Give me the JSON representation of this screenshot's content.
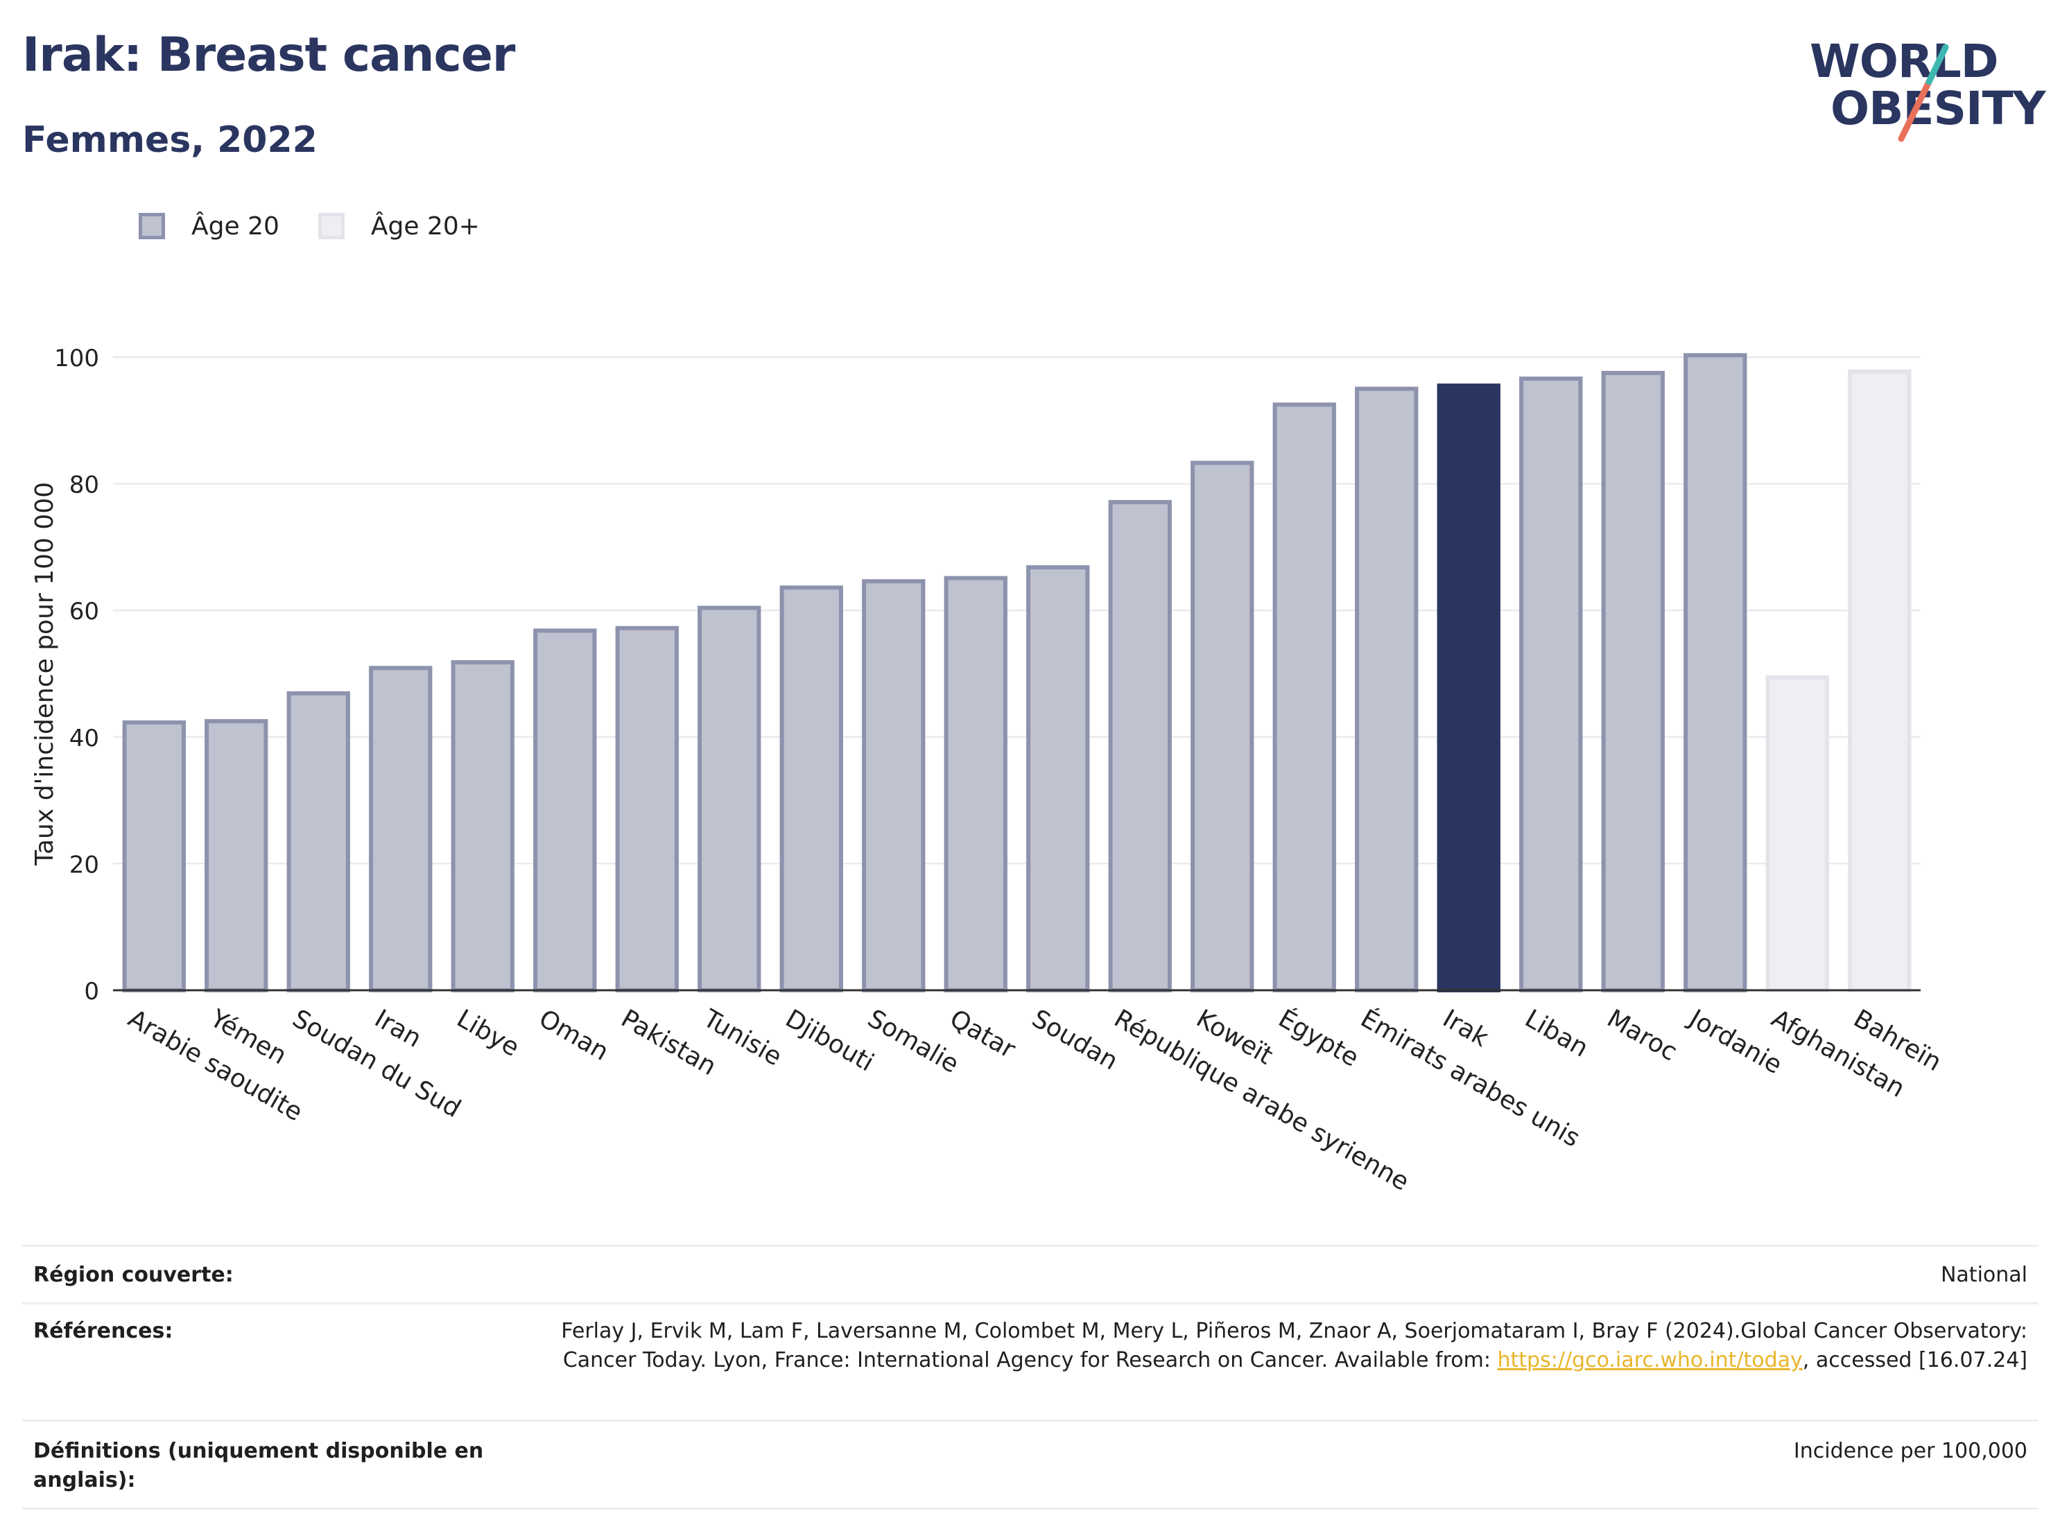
{
  "header": {
    "title": "Irak: Breast cancer",
    "subtitle": "Femmes, 2022"
  },
  "logo": {
    "line1": "WORLD",
    "line2": "OBESITY"
  },
  "legend": [
    {
      "label": "Âge 20",
      "fill": "#bfc2cf",
      "stroke": "#8d93ad"
    },
    {
      "label": "Âge 20+",
      "fill": "#eeeff3",
      "stroke": "#e3e4ea"
    }
  ],
  "colors": {
    "highlight": "#2a3560",
    "bar_fill": "#bfc2cf",
    "bar_stroke": "#8d93ad",
    "bar_light_fill": "#eeeff3",
    "bar_light_stroke": "#e3e4ea",
    "grid": "#e6e6ea",
    "link": "#e8b52a"
  },
  "chart_data": {
    "type": "bar",
    "title": "",
    "xlabel": "",
    "ylabel": "Taux d'incidence pour 100 000",
    "ylim": [
      0,
      100
    ],
    "yticks": [
      0,
      20,
      40,
      60,
      80,
      100
    ],
    "grid": true,
    "legend_position": "top-left",
    "categories": [
      "Arabie saoudite",
      "Yémen",
      "Soudan du Sud",
      "Iran",
      "Libye",
      "Oman",
      "Pakistan",
      "Tunisie",
      "Djibouti",
      "Somalie",
      "Qatar",
      "Soudan",
      "République arabe syrienne",
      "Koweït",
      "Égypte",
      "Émirats arabes unis",
      "Irak",
      "Liban",
      "Maroc",
      "Jordanie",
      "Afghanistan",
      "Bahreïn"
    ],
    "values": [
      42.3,
      42.5,
      46.9,
      50.9,
      51.8,
      56.8,
      57.2,
      60.4,
      63.6,
      64.6,
      65.1,
      66.8,
      77.1,
      83.3,
      92.5,
      95.0,
      95.5,
      96.6,
      97.5,
      100.3,
      49.4,
      97.7
    ],
    "series_by_bar": [
      "Âge 20",
      "Âge 20",
      "Âge 20",
      "Âge 20",
      "Âge 20",
      "Âge 20",
      "Âge 20",
      "Âge 20",
      "Âge 20",
      "Âge 20",
      "Âge 20",
      "Âge 20",
      "Âge 20",
      "Âge 20",
      "Âge 20",
      "Âge 20",
      "Âge 20",
      "Âge 20",
      "Âge 20",
      "Âge 20",
      "Âge 20+",
      "Âge 20+"
    ],
    "highlighted": "Irak"
  },
  "info_table": [
    {
      "label": "Région couverte:",
      "value": "National"
    },
    {
      "label": "Références:",
      "value_before": "Ferlay J, Ervik M, Lam F, Laversanne M, Colombet M, Mery L, Piñeros M, Znaor A, Soerjomataram I, Bray F (2024).Global Cancer Observatory: Cancer Today. Lyon, France: International Agency for Research on Cancer. Available from: ",
      "link": "https://gco.iarc.who.int/today",
      "value_after": ", accessed [16.07.24]"
    },
    {
      "label": "Définitions (uniquement disponible en anglais):",
      "value": "Incidence per 100,000"
    }
  ]
}
